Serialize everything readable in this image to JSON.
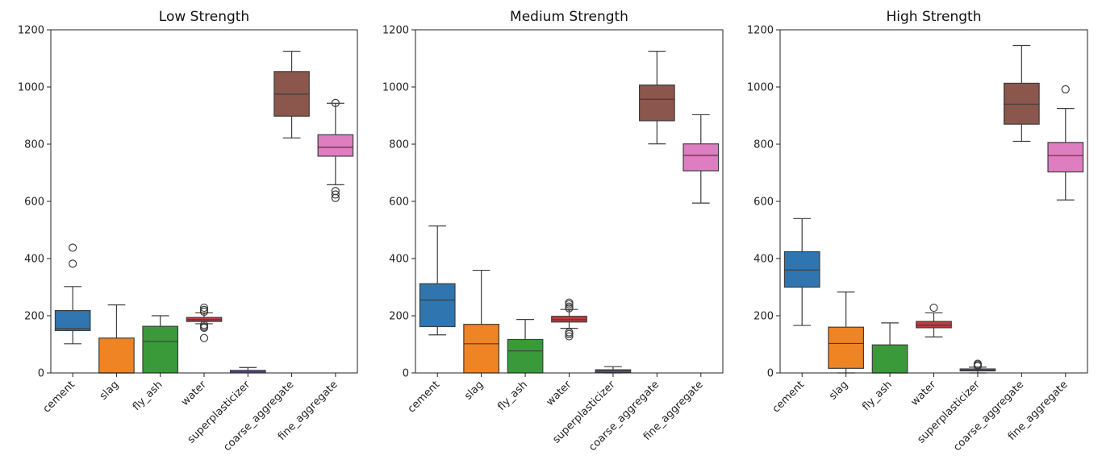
{
  "chart_data": [
    {
      "type": "box",
      "title": "Low Strength",
      "xlabel": "",
      "ylabel": "",
      "ylim": [
        0,
        1200
      ],
      "yticks": [
        "0",
        "200",
        "400",
        "600",
        "800",
        "1000",
        "1200"
      ],
      "categories": [
        "cement",
        "slag",
        "fly_ash",
        "water",
        "superplasticizer",
        "coarse_aggregate",
        "fine_aggregate"
      ],
      "boxes": [
        {
          "category": "cement",
          "whisker_low": 102,
          "q1": 148,
          "median": 155,
          "q3": 218,
          "whisker_high": 302,
          "outliers": [
            382,
            438
          ],
          "color": "#2f75b0"
        },
        {
          "category": "slag",
          "whisker_low": 0,
          "q1": 0,
          "median": 0,
          "q3": 122,
          "whisker_high": 238,
          "outliers": [],
          "color": "#ef8424"
        },
        {
          "category": "fly_ash",
          "whisker_low": 0,
          "q1": 0,
          "median": 110,
          "q3": 163,
          "whisker_high": 200,
          "outliers": [],
          "color": "#3a9a3a"
        },
        {
          "category": "water",
          "whisker_low": 172,
          "q1": 180,
          "median": 186,
          "q3": 194,
          "whisker_high": 210,
          "outliers": [
            122,
            158,
            162,
            168,
            214,
            220,
            228
          ],
          "color": "#c43a3c"
        },
        {
          "category": "superplasticizer",
          "whisker_low": 0,
          "q1": 0,
          "median": 4,
          "q3": 9,
          "whisker_high": 19,
          "outliers": [],
          "color": "#8563b8"
        },
        {
          "category": "coarse_aggregate",
          "whisker_low": 822,
          "q1": 898,
          "median": 975,
          "q3": 1054,
          "whisker_high": 1125,
          "outliers": [],
          "color": "#8b564b"
        },
        {
          "category": "fine_aggregate",
          "whisker_low": 658,
          "q1": 758,
          "median": 789,
          "q3": 833,
          "whisker_high": 943,
          "outliers": [
            612,
            624,
            636,
            944
          ],
          "color": "#de7ec0"
        }
      ]
    },
    {
      "type": "box",
      "title": "Medium Strength",
      "xlabel": "",
      "ylabel": "",
      "ylim": [
        0,
        1200
      ],
      "yticks": [
        "0",
        "200",
        "400",
        "600",
        "800",
        "1000",
        "1200"
      ],
      "categories": [
        "cement",
        "slag",
        "fly_ash",
        "water",
        "superplasticizer",
        "coarse_aggregate",
        "fine_aggregate"
      ],
      "boxes": [
        {
          "category": "cement",
          "whisker_low": 133,
          "q1": 162,
          "median": 255,
          "q3": 312,
          "whisker_high": 514,
          "outliers": [],
          "color": "#2f75b0"
        },
        {
          "category": "slag",
          "whisker_low": 0,
          "q1": 0,
          "median": 102,
          "q3": 170,
          "whisker_high": 359,
          "outliers": [],
          "color": "#ef8424"
        },
        {
          "category": "fly_ash",
          "whisker_low": 0,
          "q1": 0,
          "median": 77,
          "q3": 117,
          "whisker_high": 187,
          "outliers": [],
          "color": "#3a9a3a"
        },
        {
          "category": "water",
          "whisker_low": 156,
          "q1": 178,
          "median": 186,
          "q3": 198,
          "whisker_high": 222,
          "outliers": [
            128,
            136,
            142,
            226,
            232,
            240,
            246
          ],
          "color": "#c43a3c"
        },
        {
          "category": "superplasticizer",
          "whisker_low": 0,
          "q1": 2,
          "median": 7,
          "q3": 11,
          "whisker_high": 22,
          "outliers": [],
          "color": "#8563b8"
        },
        {
          "category": "coarse_aggregate",
          "whisker_low": 801,
          "q1": 882,
          "median": 957,
          "q3": 1007,
          "whisker_high": 1125,
          "outliers": [],
          "color": "#8b564b"
        },
        {
          "category": "fine_aggregate",
          "whisker_low": 594,
          "q1": 707,
          "median": 761,
          "q3": 801,
          "whisker_high": 903,
          "outliers": [],
          "color": "#de7ec0"
        }
      ]
    },
    {
      "type": "box",
      "title": "High Strength",
      "xlabel": "",
      "ylabel": "",
      "ylim": [
        0,
        1200
      ],
      "yticks": [
        "0",
        "200",
        "400",
        "600",
        "800",
        "1000",
        "1200"
      ],
      "categories": [
        "cement",
        "slag",
        "fly_ash",
        "water",
        "superplasticizer",
        "coarse_aggregate",
        "fine_aggregate"
      ],
      "boxes": [
        {
          "category": "cement",
          "whisker_low": 166,
          "q1": 300,
          "median": 360,
          "q3": 424,
          "whisker_high": 540,
          "outliers": [],
          "color": "#2f75b0"
        },
        {
          "category": "slag",
          "whisker_low": 0,
          "q1": 16,
          "median": 103,
          "q3": 160,
          "whisker_high": 283,
          "outliers": [],
          "color": "#ef8424"
        },
        {
          "category": "fly_ash",
          "whisker_low": 0,
          "q1": 0,
          "median": 0,
          "q3": 98,
          "whisker_high": 175,
          "outliers": [],
          "color": "#3a9a3a"
        },
        {
          "category": "water",
          "whisker_low": 126,
          "q1": 158,
          "median": 167,
          "q3": 180,
          "whisker_high": 210,
          "outliers": [
            228
          ],
          "color": "#c43a3c"
        },
        {
          "category": "superplasticizer",
          "whisker_low": 0,
          "q1": 7,
          "median": 10,
          "q3": 14,
          "whisker_high": 20,
          "outliers": [
            24,
            28,
            32
          ],
          "color": "#8563b8"
        },
        {
          "category": "coarse_aggregate",
          "whisker_low": 810,
          "q1": 870,
          "median": 940,
          "q3": 1013,
          "whisker_high": 1145,
          "outliers": [],
          "color": "#8b564b"
        },
        {
          "category": "fine_aggregate",
          "whisker_low": 605,
          "q1": 703,
          "median": 760,
          "q3": 806,
          "whisker_high": 925,
          "outliers": [
            992
          ],
          "color": "#de7ec0"
        }
      ]
    }
  ]
}
